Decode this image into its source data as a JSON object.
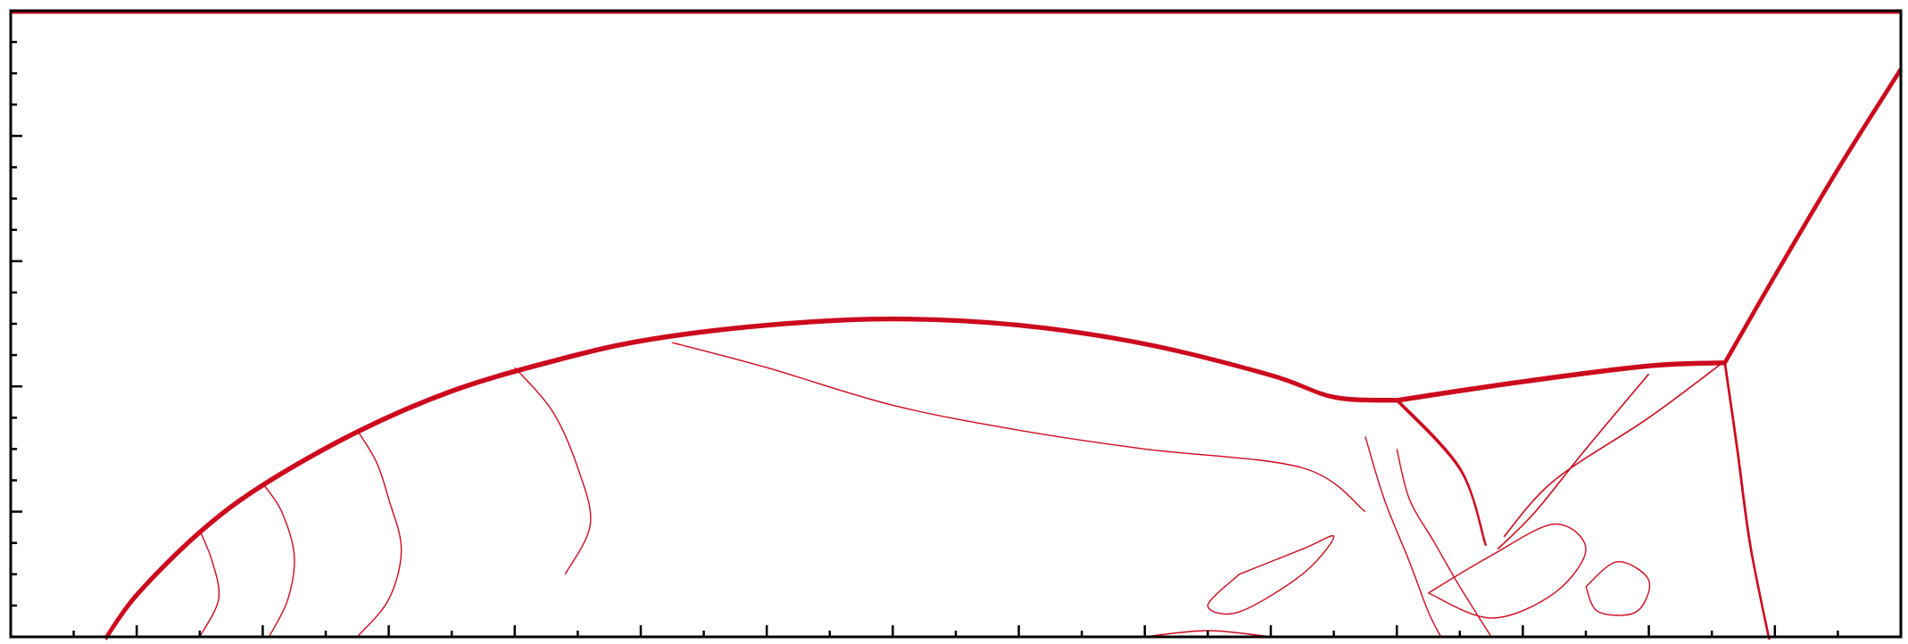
{
  "chart_data": {
    "type": "contour",
    "title": "",
    "xlabel": "",
    "ylabel": "",
    "xlim": [
      0,
      3
    ],
    "ylim": [
      0,
      1
    ],
    "grid": false,
    "x_major_ticks": [
      0,
      0.2,
      0.4,
      0.6,
      0.8,
      1.0,
      1.2,
      1.4,
      1.6,
      1.8,
      2.0,
      2.2,
      2.4,
      2.6,
      2.8,
      3.0
    ],
    "x_minor_ticks": [
      0.1,
      0.3,
      0.5,
      0.7,
      0.9,
      1.1,
      1.3,
      1.5,
      1.7,
      1.9,
      2.1,
      2.3,
      2.5,
      2.7,
      2.9
    ],
    "y_major_ticks": [
      0,
      0.2,
      0.4,
      0.6,
      0.8,
      1.0
    ],
    "y_minor_ticks": [
      0.05,
      0.1,
      0.15,
      0.25,
      0.3,
      0.35,
      0.45,
      0.5,
      0.55,
      0.65,
      0.7,
      0.75,
      0.85,
      0.9,
      0.95
    ],
    "tick_labels_shown": false,
    "line_color": "#cc0a1e",
    "axis_color": "#000000",
    "features": [
      {
        "name": "bow-shock",
        "points": [
          [
            0.15,
            0.0
          ],
          [
            0.2,
            0.07
          ],
          [
            0.3,
            0.17
          ],
          [
            0.4,
            0.245
          ],
          [
            0.55,
            0.33
          ],
          [
            0.7,
            0.395
          ],
          [
            0.85,
            0.44
          ],
          [
            1.0,
            0.475
          ],
          [
            1.2,
            0.5
          ],
          [
            1.4,
            0.51
          ],
          [
            1.6,
            0.5
          ],
          [
            1.8,
            0.47
          ],
          [
            2.0,
            0.42
          ],
          [
            2.1,
            0.385
          ],
          [
            2.2,
            0.38
          ]
        ]
      },
      {
        "name": "reflected-shock-upper",
        "points": [
          [
            2.2,
            0.38
          ],
          [
            2.4,
            0.41
          ],
          [
            2.6,
            0.435
          ],
          [
            2.72,
            0.44
          ]
        ]
      },
      {
        "name": "incident-oblique-shock",
        "points": [
          [
            2.72,
            0.44
          ],
          [
            2.8,
            0.58
          ],
          [
            2.9,
            0.75
          ],
          [
            3.0,
            0.91
          ]
        ]
      },
      {
        "name": "mach-stem",
        "points": [
          [
            2.72,
            0.44
          ],
          [
            2.74,
            0.3
          ],
          [
            2.76,
            0.15
          ],
          [
            2.79,
            0.0
          ]
        ]
      },
      {
        "name": "inner-shock",
        "points": [
          [
            2.2,
            0.38
          ],
          [
            2.3,
            0.27
          ],
          [
            2.34,
            0.15
          ]
        ]
      },
      {
        "name": "slip-line-1",
        "points": [
          [
            2.6,
            0.42
          ],
          [
            2.5,
            0.3
          ],
          [
            2.42,
            0.2
          ],
          [
            2.36,
            0.14
          ]
        ]
      },
      {
        "name": "slip-line-2",
        "points": [
          [
            2.72,
            0.44
          ],
          [
            2.6,
            0.35
          ],
          [
            2.45,
            0.25
          ],
          [
            2.37,
            0.16
          ]
        ]
      },
      {
        "name": "wall-contour",
        "points": [
          [
            1.8,
            0.0
          ],
          [
            1.9,
            0.01
          ],
          [
            2.0,
            0.0
          ]
        ]
      }
    ]
  }
}
